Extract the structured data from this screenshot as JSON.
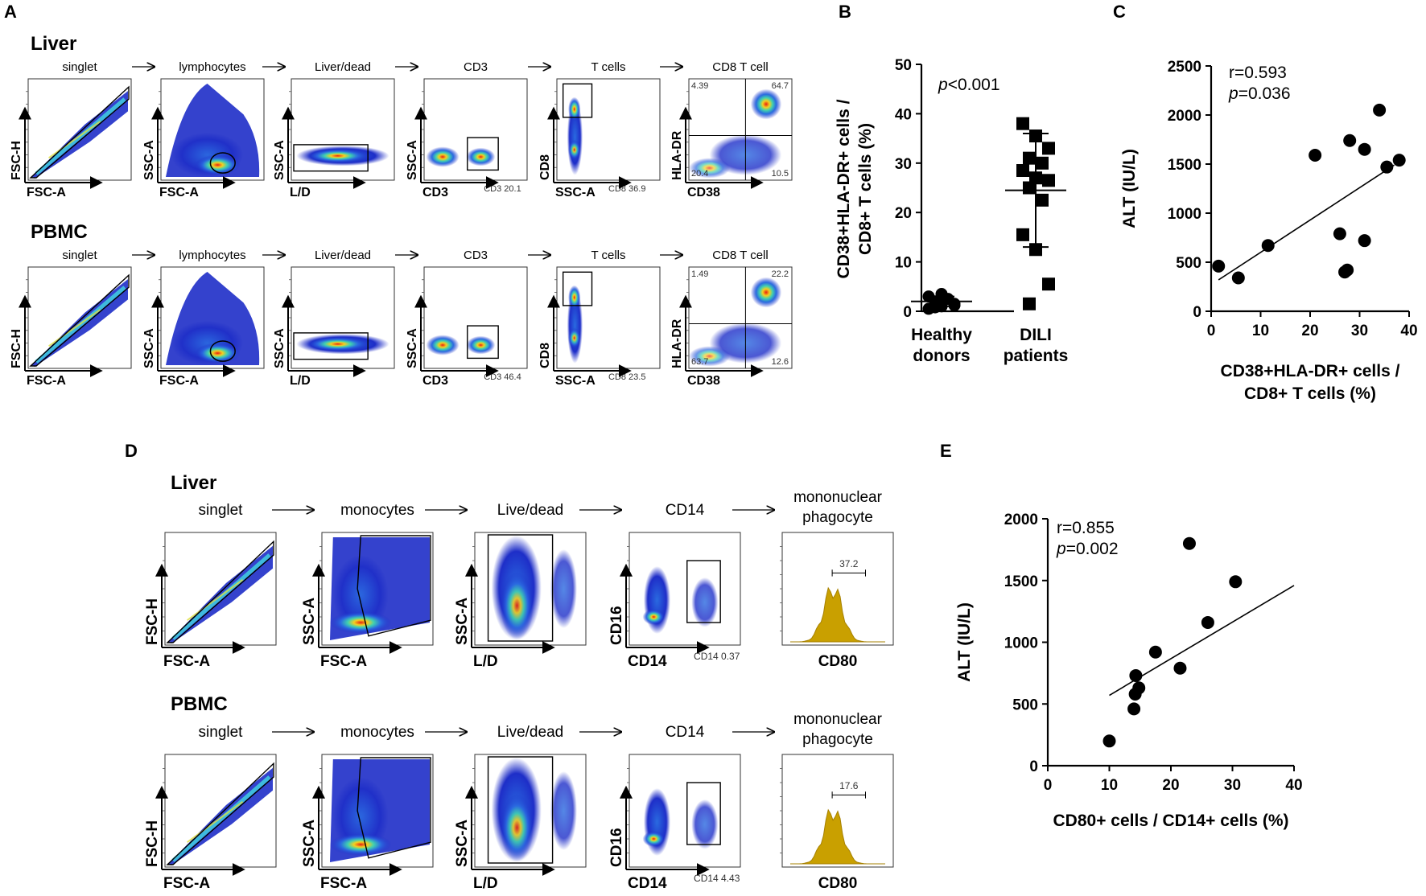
{
  "panel_letters": {
    "A": "A",
    "B": "B",
    "C": "C",
    "D": "D",
    "E": "E"
  },
  "panelA": {
    "rows": [
      {
        "tissue": "Liver",
        "plots": [
          {
            "gate": "singlet",
            "x": "FSC-A",
            "y": "FSC-H",
            "type": "diag"
          },
          {
            "gate": "lymphocytes",
            "x": "FSC-A",
            "y": "SSC-A",
            "type": "cloud"
          },
          {
            "gate": "Liver/dead",
            "x": "L/D",
            "y": "SSC-A",
            "type": "band"
          },
          {
            "gate": "CD3",
            "x": "CD3",
            "y": "SSC-A",
            "type": "twoblob",
            "pct": "CD3 20.1"
          },
          {
            "gate": "T cells",
            "x": "SSC-A",
            "y": "CD8",
            "type": "vstrip",
            "pct": "CD8 36.9"
          },
          {
            "gate": "CD8 T cell",
            "x": "CD38",
            "y": "HLA-DR",
            "type": "quad",
            "q": [
              "4.39",
              "64.7",
              "20.4",
              "10.5"
            ]
          }
        ]
      },
      {
        "tissue": "PBMC",
        "plots": [
          {
            "gate": "singlet",
            "x": "FSC-A",
            "y": "FSC-H",
            "type": "diag"
          },
          {
            "gate": "lymphocytes",
            "x": "FSC-A",
            "y": "SSC-A",
            "type": "cloud"
          },
          {
            "gate": "Liver/dead",
            "x": "L/D",
            "y": "SSC-A",
            "type": "band"
          },
          {
            "gate": "CD3",
            "x": "CD3",
            "y": "SSC-A",
            "type": "twoblob",
            "pct": "CD3 46.4"
          },
          {
            "gate": "T cells",
            "x": "SSC-A",
            "y": "CD8",
            "type": "vstrip",
            "pct": "CD8 23.5"
          },
          {
            "gate": "CD8 T cell",
            "x": "CD38",
            "y": "HLA-DR",
            "type": "quad",
            "q": [
              "1.49",
              "22.2",
              "63.7",
              "12.6"
            ]
          }
        ]
      }
    ]
  },
  "panelD": {
    "rows": [
      {
        "tissue": "Liver",
        "plots": [
          {
            "gate": "singlet",
            "x": "FSC-A",
            "y": "FSC-H",
            "type": "diag"
          },
          {
            "gate": "monocytes",
            "x": "FSC-A",
            "y": "SSC-A",
            "type": "mono"
          },
          {
            "gate": "Live/dead",
            "x": "L/D",
            "y": "SSC-A",
            "type": "live"
          },
          {
            "gate": "CD14",
            "x": "CD14",
            "y": "CD16",
            "type": "cd14",
            "pct": "CD14 0.37"
          },
          {
            "gate": "mononuclear phagocyte",
            "gate1": "mononuclear",
            "gate2": "phagocyte",
            "x": "CD80",
            "y": "",
            "type": "hist",
            "pct": "37.2"
          }
        ]
      },
      {
        "tissue": "PBMC",
        "plots": [
          {
            "gate": "singlet",
            "x": "FSC-A",
            "y": "FSC-H",
            "type": "diag"
          },
          {
            "gate": "monocytes",
            "x": "FSC-A",
            "y": "SSC-A",
            "type": "mono"
          },
          {
            "gate": "Live/dead",
            "x": "L/D",
            "y": "SSC-A",
            "type": "live"
          },
          {
            "gate": "CD14",
            "x": "CD14",
            "y": "CD16",
            "type": "cd14",
            "pct": "CD14 4.43"
          },
          {
            "gate": "mononuclear phagocyte",
            "gate1": "mononuclear",
            "gate2": "phagocyte",
            "x": "CD80",
            "y": "",
            "type": "hist",
            "pct": "17.6"
          }
        ]
      }
    ]
  },
  "colors": {
    "hist_fill": "#c9a000",
    "hist_stroke": "#a68000",
    "density_low": "#1e2ec8",
    "density_high": "#e82010"
  },
  "chart_data": [
    {
      "id": "B",
      "type": "scatter",
      "title": "",
      "ylabel_line1": "CD38+HLA-DR+ cells /",
      "ylabel_line2": "CD8+ T cells (%)",
      "ylim": [
        0,
        50
      ],
      "yticks": [
        0,
        10,
        20,
        30,
        40,
        50
      ],
      "annotation_p": "p",
      "annotation_rest": "<0.001",
      "groups": [
        {
          "name_line1": "Healthy",
          "name_line2": "donors",
          "marker": "circle",
          "values": [
            0.5,
            1,
            1.5,
            2,
            2.5,
            3,
            3.5,
            1.2,
            0.8
          ],
          "mean": 2.0,
          "sd": 1.0
        },
        {
          "name_line1": "DILI",
          "name_line2": "patients",
          "marker": "square",
          "values": [
            38,
            35.5,
            33,
            31,
            30,
            28.5,
            27,
            26.5,
            25,
            22.5,
            15.5,
            12.5,
            5.5,
            1.5
          ],
          "mean": 24.5,
          "sd": 11.5
        }
      ]
    },
    {
      "id": "C",
      "type": "scatter",
      "xlabel_line1": "CD38+HLA-DR+ cells /",
      "xlabel_line2": "CD8+ T cells (%)",
      "ylabel": "ALT (IU/L)",
      "xlim": [
        0,
        40
      ],
      "ylim": [
        0,
        2500
      ],
      "xticks": [
        0,
        10,
        20,
        30,
        40
      ],
      "yticks": [
        0,
        500,
        1000,
        1500,
        2000,
        2500
      ],
      "r": "r=0.593",
      "p_label": "p",
      "p_rest": "=0.036",
      "points": [
        [
          1.5,
          460
        ],
        [
          5.5,
          340
        ],
        [
          11.5,
          670
        ],
        [
          21,
          1590
        ],
        [
          26,
          790
        ],
        [
          27,
          400
        ],
        [
          27.5,
          420
        ],
        [
          28,
          1740
        ],
        [
          31,
          1650
        ],
        [
          31,
          720
        ],
        [
          34,
          2050
        ],
        [
          35.5,
          1470
        ],
        [
          38,
          1540
        ]
      ],
      "fit": [
        [
          1.5,
          320
        ],
        [
          37,
          1490
        ]
      ]
    },
    {
      "id": "E",
      "type": "scatter",
      "xlabel": "CD80+ cells / CD14+ cells (%)",
      "ylabel": "ALT (IU/L)",
      "xlim": [
        0,
        40
      ],
      "ylim": [
        0,
        2000
      ],
      "xticks": [
        0,
        10,
        20,
        30,
        40
      ],
      "yticks": [
        0,
        500,
        1000,
        1500,
        2000
      ],
      "r": "r=0.855",
      "p_label": "p",
      "p_rest": "=0.002",
      "points": [
        [
          10,
          200
        ],
        [
          14,
          460
        ],
        [
          14.2,
          580
        ],
        [
          14.3,
          730
        ],
        [
          14.8,
          630
        ],
        [
          17.5,
          920
        ],
        [
          21.5,
          790
        ],
        [
          23,
          1800
        ],
        [
          26,
          1160
        ],
        [
          30.5,
          1490
        ]
      ],
      "fit": [
        [
          10,
          570
        ],
        [
          40,
          1460
        ]
      ]
    }
  ]
}
